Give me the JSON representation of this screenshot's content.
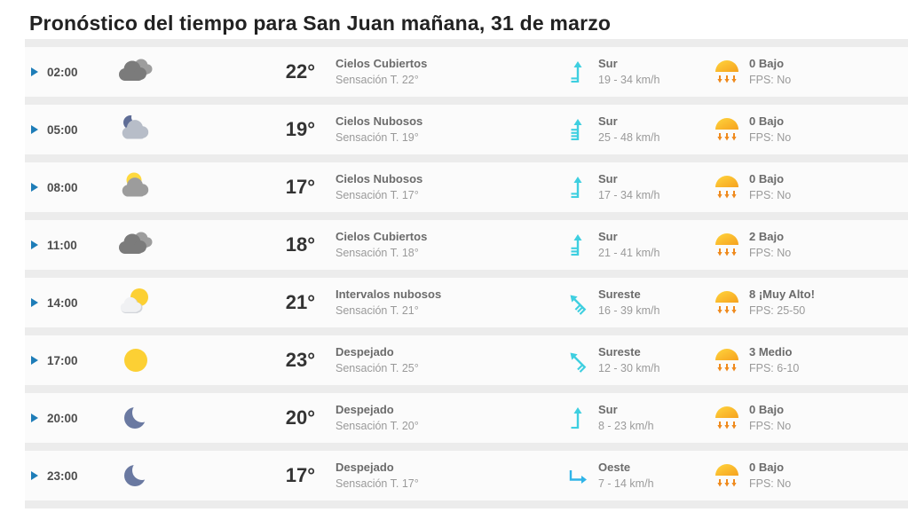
{
  "page": {
    "title": "Pronóstico del tiempo para San Juan mañana, 31 de marzo"
  },
  "colors": {
    "accent_blue": "#1e7db8",
    "wind_teal": "#3ecfe0",
    "wind_blue": "#2fb4e8",
    "uv_yellow": "#ffd53e",
    "uv_orange": "#f6a21e",
    "uv_arrow": "#ef8a1d",
    "separator": "#ececec",
    "row_bg": "#fbfbfb"
  },
  "table": {
    "rows": [
      {
        "time": "02:00",
        "weather_icon": "clouds-dark",
        "temperature": "22°",
        "condition": "Cielos Cubiertos",
        "feels_like": "Sensación T. 22°",
        "wind": {
          "icon_type": "up",
          "barbs": 2,
          "direction": "Sur",
          "speed": "19 - 34 km/h"
        },
        "uv": {
          "icon": "uv-sun",
          "index": "0 Bajo",
          "fps": "FPS: No"
        }
      },
      {
        "time": "05:00",
        "weather_icon": "cloud-moon",
        "temperature": "19°",
        "condition": "Cielos Nubosos",
        "feels_like": "Sensación T. 19°",
        "wind": {
          "icon_type": "up",
          "barbs": 4,
          "direction": "Sur",
          "speed": "25 - 48 km/h"
        },
        "uv": {
          "icon": "uv-sun",
          "index": "0 Bajo",
          "fps": "FPS: No"
        }
      },
      {
        "time": "08:00",
        "weather_icon": "cloud-sun",
        "temperature": "17°",
        "condition": "Cielos Nubosos",
        "feels_like": "Sensación T. 17°",
        "wind": {
          "icon_type": "up",
          "barbs": 2,
          "direction": "Sur",
          "speed": "17 - 34 km/h"
        },
        "uv": {
          "icon": "uv-sun",
          "index": "0 Bajo",
          "fps": "FPS: No"
        }
      },
      {
        "time": "11:00",
        "weather_icon": "clouds-dark",
        "temperature": "18°",
        "condition": "Cielos Cubiertos",
        "feels_like": "Sensación T. 18°",
        "wind": {
          "icon_type": "up",
          "barbs": 3,
          "direction": "Sur",
          "speed": "21 - 41 km/h"
        },
        "uv": {
          "icon": "uv-sun",
          "index": "2 Bajo",
          "fps": "FPS: No"
        }
      },
      {
        "time": "14:00",
        "weather_icon": "sun-cloud",
        "temperature": "21°",
        "condition": "Intervalos nubosos",
        "feels_like": "Sensación T. 21°",
        "wind": {
          "icon_type": "diag",
          "barbs": 3,
          "direction": "Sureste",
          "speed": "16 - 39 km/h"
        },
        "uv": {
          "icon": "uv-sun",
          "index": "8 ¡Muy Alto!",
          "fps": "FPS: 25-50"
        }
      },
      {
        "time": "17:00",
        "weather_icon": "sun",
        "temperature": "23°",
        "condition": "Despejado",
        "feels_like": "Sensación T. 25°",
        "wind": {
          "icon_type": "diag",
          "barbs": 2,
          "direction": "Sureste",
          "speed": "12 - 30 km/h"
        },
        "uv": {
          "icon": "uv-sun",
          "index": "3 Medio",
          "fps": "FPS: 6-10"
        }
      },
      {
        "time": "20:00",
        "weather_icon": "moon",
        "temperature": "20°",
        "condition": "Despejado",
        "feels_like": "Sensación T. 20°",
        "wind": {
          "icon_type": "up",
          "barbs": 1,
          "direction": "Sur",
          "speed": "8 - 23 km/h"
        },
        "uv": {
          "icon": "uv-sun",
          "index": "0 Bajo",
          "fps": "FPS: No"
        }
      },
      {
        "time": "23:00",
        "weather_icon": "moon",
        "temperature": "17°",
        "condition": "Despejado",
        "feels_like": "Sensación T. 17°",
        "wind": {
          "icon_type": "right",
          "barbs": 0,
          "direction": "Oeste",
          "speed": "7 - 14 km/h"
        },
        "uv": {
          "icon": "uv-sun",
          "index": "0 Bajo",
          "fps": "FPS: No"
        }
      }
    ]
  }
}
